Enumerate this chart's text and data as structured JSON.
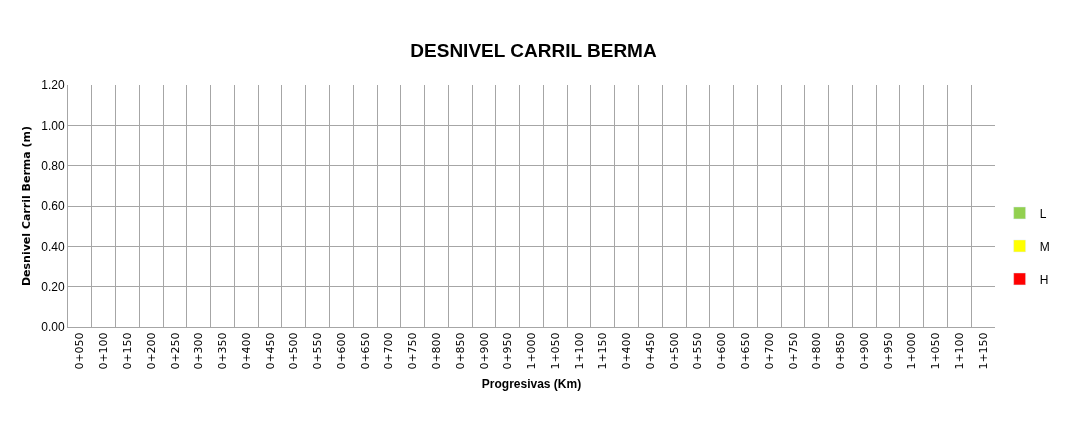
{
  "chart_data": {
    "type": "bar",
    "title": "DESNIVEL CARRIL BERMA",
    "xlabel": "Progresivas (Km)",
    "ylabel": "Desnivel Carril Berma (m)",
    "categories": [
      "0+050",
      "0+100",
      "0+150",
      "0+200",
      "0+250",
      "0+300",
      "0+350",
      "0+400",
      "0+450",
      "0+500",
      "0+550",
      "0+600",
      "0+650",
      "0+700",
      "0+750",
      "0+800",
      "0+850",
      "0+900",
      "0+950",
      "1+000",
      "1+050",
      "1+100",
      "1+150",
      "0+400",
      "0+450",
      "0+500",
      "0+550",
      "0+600",
      "0+650",
      "0+700",
      "0+750",
      "0+800",
      "0+850",
      "0+900",
      "0+950",
      "1+000",
      "1+050",
      "1+100",
      "1+150"
    ],
    "series": [
      {
        "name": "L",
        "color": "#92d050",
        "values": [
          null,
          null,
          null,
          null,
          null,
          null,
          null,
          null,
          null,
          null,
          null,
          null,
          null,
          null,
          null,
          null,
          null,
          null,
          null,
          null,
          null,
          null,
          null,
          null,
          null,
          null,
          null,
          null,
          null,
          null,
          null,
          null,
          null,
          null,
          null,
          null,
          null,
          null,
          null
        ]
      },
      {
        "name": "M",
        "color": "#ffff00",
        "values": [
          null,
          null,
          null,
          null,
          null,
          null,
          null,
          null,
          null,
          null,
          null,
          null,
          null,
          null,
          null,
          null,
          null,
          null,
          null,
          null,
          null,
          null,
          null,
          null,
          null,
          null,
          null,
          null,
          null,
          null,
          null,
          null,
          null,
          null,
          null,
          null,
          null,
          null,
          null
        ]
      },
      {
        "name": "H",
        "color": "#ff0000",
        "values": [
          null,
          null,
          null,
          null,
          null,
          null,
          null,
          null,
          null,
          null,
          null,
          null,
          null,
          null,
          null,
          null,
          null,
          null,
          null,
          null,
          null,
          null,
          null,
          null,
          null,
          null,
          null,
          null,
          null,
          null,
          null,
          null,
          null,
          null,
          null,
          null,
          null,
          null,
          null
        ]
      }
    ],
    "ylim": [
      0,
      1.2
    ],
    "yticks": [
      {
        "value": 0,
        "label": "0.00"
      },
      {
        "value": 0.2,
        "label": "0.20"
      },
      {
        "value": 0.4,
        "label": "0.40"
      },
      {
        "value": 0.6,
        "label": "0.60"
      },
      {
        "value": 0.8,
        "label": "0.80"
      },
      {
        "value": 1.0,
        "label": "1.00"
      },
      {
        "value": 1.2,
        "label": "1.20"
      }
    ],
    "grid": true,
    "legend": "right"
  }
}
